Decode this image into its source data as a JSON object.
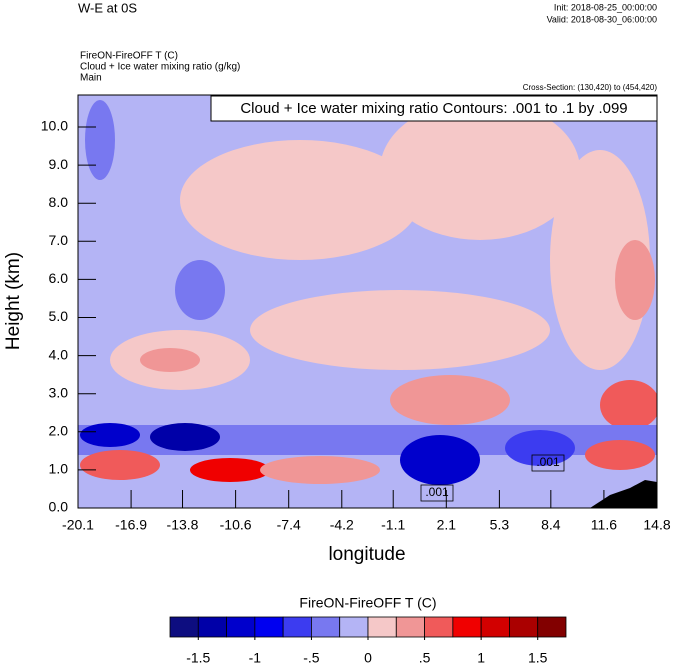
{
  "chart_data": {
    "type": "contour",
    "title": "W-E at 0S",
    "init": "Init: 2018-08-25_00:00:00",
    "valid": "Valid: 2018-08-30_06:00:00",
    "subtitles": [
      "FireON-FireOFF T   (C)",
      "Cloud + Ice water mixing ratio   (g/kg)",
      "Main"
    ],
    "cross_section": "Cross-Section: (130,420) to (454,420)",
    "contour_info": "Cloud + Ice water mixing ratio Contours: .001 to .1 by .099",
    "xlabel": "longitude",
    "ylabel": "Height (km)",
    "xlim": [
      -20.1,
      14.8
    ],
    "xticks": [
      -20.1,
      -16.9,
      -13.8,
      -10.6,
      -7.4,
      -4.2,
      -1.1,
      2.1,
      5.3,
      8.4,
      11.6,
      14.8
    ],
    "ylim": [
      0,
      10.84
    ],
    "yticks": [
      {
        "value": 0,
        "label": "0.0"
      },
      {
        "value": 1,
        "label": "1.0"
      },
      {
        "value": 2,
        "label": "2.0"
      },
      {
        "value": 3,
        "label": "3.0"
      },
      {
        "value": 4,
        "label": "4.0"
      },
      {
        "value": 5,
        "label": "5.0"
      },
      {
        "value": 6,
        "label": "6.0"
      },
      {
        "value": 7,
        "label": "7.0"
      },
      {
        "value": 8,
        "label": "8.0"
      },
      {
        "value": 9,
        "label": "9.0"
      },
      {
        "value": 10,
        "label": "10.0"
      }
    ],
    "contour_labels": [
      ".001",
      ".001"
    ],
    "colorbar": {
      "title": "FireON-FireOFF T  (C)",
      "lim": [
        -1.75,
        1.75
      ],
      "ticks": [
        -1.5,
        -1,
        {
          "value": -0.5,
          "label": "-.5"
        },
        0,
        {
          "value": 0.5,
          "label": ".5"
        },
        1,
        1.5
      ],
      "colors": [
        "#0d0d80",
        "#0000a8",
        "#0000cc",
        "#0000f0",
        "#3c3cf0",
        "#7878f0",
        "#b4b4f5",
        "#f5c8c8",
        "#f09696",
        "#f05a5a",
        "#f00000",
        "#d20000",
        "#aa0000",
        "#820000"
      ]
    }
  }
}
